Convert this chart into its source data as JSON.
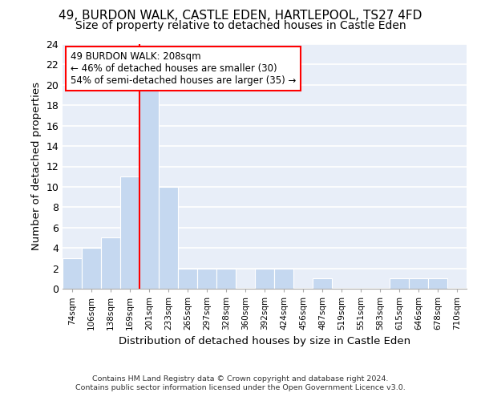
{
  "title": "49, BURDON WALK, CASTLE EDEN, HARTLEPOOL, TS27 4FD",
  "subtitle": "Size of property relative to detached houses in Castle Eden",
  "xlabel": "Distribution of detached houses by size in Castle Eden",
  "ylabel": "Number of detached properties",
  "bin_labels": [
    "74sqm",
    "106sqm",
    "138sqm",
    "169sqm",
    "201sqm",
    "233sqm",
    "265sqm",
    "297sqm",
    "328sqm",
    "360sqm",
    "392sqm",
    "424sqm",
    "456sqm",
    "487sqm",
    "519sqm",
    "551sqm",
    "583sqm",
    "615sqm",
    "646sqm",
    "678sqm",
    "710sqm"
  ],
  "bin_counts": [
    3,
    4,
    5,
    11,
    20,
    10,
    2,
    2,
    2,
    0,
    2,
    2,
    0,
    1,
    0,
    0,
    0,
    1,
    1,
    1,
    0
  ],
  "bar_color": "#c5d8f0",
  "bar_edge_color": "white",
  "vline_color": "red",
  "vline_x": 4.0,
  "annotation_text": "49 BURDON WALK: 208sqm\n← 46% of detached houses are smaller (30)\n54% of semi-detached houses are larger (35) →",
  "annotation_box_color": "white",
  "annotation_box_edge_color": "red",
  "ylim": [
    0,
    24
  ],
  "yticks": [
    0,
    2,
    4,
    6,
    8,
    10,
    12,
    14,
    16,
    18,
    20,
    22,
    24
  ],
  "bg_color": "#e8eef8",
  "grid_color": "white",
  "title_fontsize": 11,
  "subtitle_fontsize": 10,
  "footer_line1": "Contains HM Land Registry data © Crown copyright and database right 2024.",
  "footer_line2": "Contains public sector information licensed under the Open Government Licence v3.0."
}
